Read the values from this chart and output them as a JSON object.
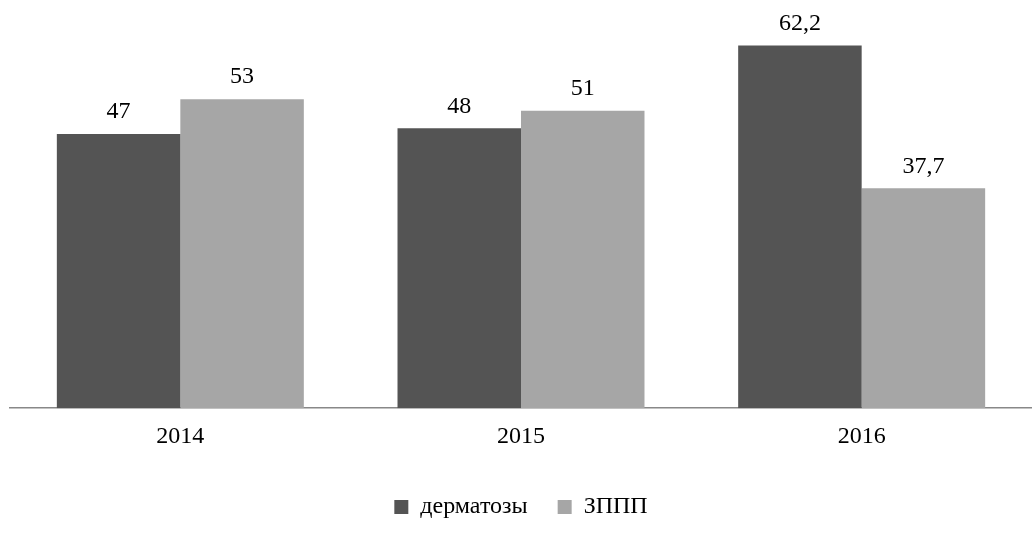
{
  "chart_data": {
    "type": "bar",
    "categories": [
      "2014",
      "2015",
      "2016"
    ],
    "series": [
      {
        "name": "дерматозы",
        "color": "#545454",
        "values": [
          47,
          48,
          62.2
        ],
        "value_labels": [
          "47",
          "48",
          "62,2"
        ]
      },
      {
        "name": "ЗППП",
        "color": "#a6a6a6",
        "values": [
          53,
          51,
          37.7
        ],
        "value_labels": [
          "53",
          "51",
          "37,7"
        ]
      }
    ],
    "tick_labels": "x",
    "grid": false,
    "legend": "bottom"
  }
}
